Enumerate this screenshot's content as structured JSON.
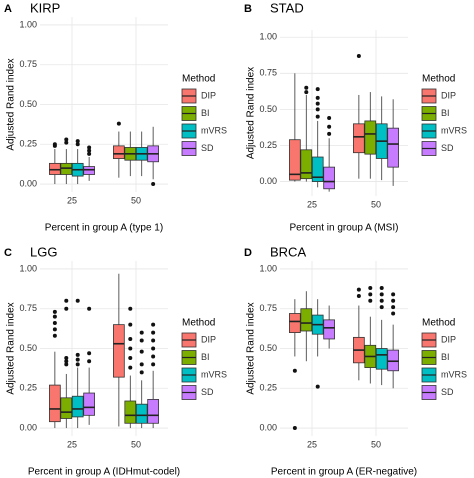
{
  "chart_data": [
    {
      "type": "box",
      "panel": "A",
      "title": "KIRP",
      "x_label": "Percent in group A (type 1)",
      "y_label": "Adjusted Rand index",
      "legend_title": "Method",
      "categories": [
        "25",
        "50"
      ],
      "ylim": [
        -0.05,
        1.05
      ],
      "yticks": [
        {
          "value": 0,
          "label": "0.00"
        },
        {
          "value": 0.25,
          "label": "0.25"
        },
        {
          "value": 0.5,
          "label": "0.50"
        },
        {
          "value": 0.75,
          "label": "0.75"
        },
        {
          "value": 1,
          "label": "1.00"
        }
      ],
      "series": [
        {
          "name": "DIP",
          "color": "#F8766D",
          "values": [
            {
              "min": 0.0,
              "q1": 0.06,
              "median": 0.09,
              "q3": 0.13,
              "max": 0.22,
              "outliers": [
                0.24,
                0.25
              ]
            },
            {
              "min": 0.04,
              "q1": 0.16,
              "median": 0.19,
              "q3": 0.24,
              "max": 0.33,
              "outliers": [
                0.38
              ]
            }
          ]
        },
        {
          "name": "BI",
          "color": "#7CAE00",
          "values": [
            {
              "min": 0.0,
              "q1": 0.06,
              "median": 0.1,
              "q3": 0.13,
              "max": 0.22,
              "outliers": [
                0.26,
                0.28
              ]
            },
            {
              "min": 0.05,
              "q1": 0.15,
              "median": 0.19,
              "q3": 0.23,
              "max": 0.33,
              "outliers": []
            }
          ]
        },
        {
          "name": "mVRS",
          "color": "#00BFC4",
          "values": [
            {
              "min": 0.0,
              "q1": 0.05,
              "median": 0.09,
              "q3": 0.13,
              "max": 0.22,
              "outliers": [
                0.25,
                0.27
              ]
            },
            {
              "min": 0.05,
              "q1": 0.15,
              "median": 0.19,
              "q3": 0.23,
              "max": 0.33,
              "outliers": []
            }
          ]
        },
        {
          "name": "SD",
          "color": "#C77CFF",
          "values": [
            {
              "min": 0.02,
              "q1": 0.06,
              "median": 0.09,
              "q3": 0.11,
              "max": 0.17,
              "outliers": [
                0.19,
                0.21,
                0.23
              ]
            },
            {
              "min": 0.03,
              "q1": 0.14,
              "median": 0.19,
              "q3": 0.24,
              "max": 0.36,
              "outliers": [
                0.0
              ]
            }
          ]
        }
      ]
    },
    {
      "type": "box",
      "panel": "B",
      "title": "STAD",
      "x_label": "Percent in group A (MSI)",
      "y_label": "Adjusted Rand index",
      "legend_title": "Method",
      "categories": [
        "25",
        "50"
      ],
      "ylim": [
        -0.1,
        1.05
      ],
      "yticks": [
        {
          "value": 0,
          "label": "0.00"
        },
        {
          "value": 0.25,
          "label": "0.25"
        },
        {
          "value": 0.5,
          "label": "0.50"
        },
        {
          "value": 0.75,
          "label": "0.75"
        },
        {
          "value": 1,
          "label": "1.00"
        }
      ],
      "series": [
        {
          "name": "DIP",
          "color": "#F8766D",
          "values": [
            {
              "min": 0.0,
              "q1": 0.01,
              "median": 0.05,
              "q3": 0.29,
              "max": 0.75,
              "outliers": []
            },
            {
              "min": 0.02,
              "q1": 0.2,
              "median": 0.31,
              "q3": 0.4,
              "max": 0.6,
              "outliers": [
                0.87
              ]
            }
          ]
        },
        {
          "name": "BI",
          "color": "#7CAE00",
          "values": [
            {
              "min": 0.0,
              "q1": 0.02,
              "median": 0.06,
              "q3": 0.22,
              "max": 0.6,
              "outliers": [
                0.62,
                0.65
              ]
            },
            {
              "min": 0.02,
              "q1": 0.19,
              "median": 0.33,
              "q3": 0.42,
              "max": 0.62,
              "outliers": []
            }
          ]
        },
        {
          "name": "mVRS",
          "color": "#00BFC4",
          "values": [
            {
              "min": -0.04,
              "q1": 0.0,
              "median": 0.03,
              "q3": 0.17,
              "max": 0.42,
              "outliers": [
                0.45,
                0.5,
                0.54,
                0.58,
                0.64
              ]
            },
            {
              "min": 0.01,
              "q1": 0.16,
              "median": 0.28,
              "q3": 0.4,
              "max": 0.59,
              "outliers": []
            }
          ]
        },
        {
          "name": "SD",
          "color": "#C77CFF",
          "values": [
            {
              "min": -0.07,
              "q1": -0.05,
              "median": 0.0,
              "q3": 0.1,
              "max": 0.3,
              "outliers": [
                0.33,
                0.38,
                0.44
              ]
            },
            {
              "min": -0.03,
              "q1": 0.1,
              "median": 0.26,
              "q3": 0.37,
              "max": 0.57,
              "outliers": []
            }
          ]
        }
      ]
    },
    {
      "type": "box",
      "panel": "C",
      "title": "LGG",
      "x_label": "Percent in group A (IDHmut-codel)",
      "y_label": "Adjusted Rand index",
      "legend_title": "Method",
      "categories": [
        "25",
        "50"
      ],
      "ylim": [
        -0.05,
        1.05
      ],
      "yticks": [
        {
          "value": 0,
          "label": "0.00"
        },
        {
          "value": 0.25,
          "label": "0.25"
        },
        {
          "value": 0.5,
          "label": "0.50"
        },
        {
          "value": 0.75,
          "label": "0.75"
        },
        {
          "value": 1,
          "label": "1.00"
        }
      ],
      "series": [
        {
          "name": "DIP",
          "color": "#F8766D",
          "values": [
            {
              "min": 0.0,
              "q1": 0.04,
              "median": 0.12,
              "q3": 0.27,
              "max": 0.48,
              "outliers": [
                0.58,
                0.62,
                0.66,
                0.7,
                0.73
              ]
            },
            {
              "min": 0.01,
              "q1": 0.32,
              "median": 0.53,
              "q3": 0.65,
              "max": 0.97,
              "outliers": []
            }
          ]
        },
        {
          "name": "BI",
          "color": "#7CAE00",
          "values": [
            {
              "min": 0.0,
              "q1": 0.06,
              "median": 0.1,
              "q3": 0.19,
              "max": 0.34,
              "outliers": [
                0.4,
                0.42,
                0.44,
                0.75,
                0.8
              ]
            },
            {
              "min": 0.0,
              "q1": 0.03,
              "median": 0.08,
              "q3": 0.17,
              "max": 0.33,
              "outliers": [
                0.38,
                0.44,
                0.5,
                0.56,
                0.65,
                0.75
              ]
            }
          ]
        },
        {
          "name": "mVRS",
          "color": "#00BFC4",
          "values": [
            {
              "min": 0.0,
              "q1": 0.07,
              "median": 0.12,
              "q3": 0.2,
              "max": 0.38,
              "outliers": [
                0.4,
                0.43,
                0.46,
                0.8
              ]
            },
            {
              "min": 0.0,
              "q1": 0.03,
              "median": 0.08,
              "q3": 0.15,
              "max": 0.3,
              "outliers": [
                0.35,
                0.4,
                0.48,
                0.55,
                0.6
              ]
            }
          ]
        },
        {
          "name": "SD",
          "color": "#C77CFF",
          "values": [
            {
              "min": 0.02,
              "q1": 0.08,
              "median": 0.13,
              "q3": 0.22,
              "max": 0.38,
              "outliers": [
                0.42,
                0.47,
                0.75
              ]
            },
            {
              "min": 0.0,
              "q1": 0.03,
              "median": 0.08,
              "q3": 0.18,
              "max": 0.36,
              "outliers": [
                0.4,
                0.45,
                0.5,
                0.55,
                0.6,
                0.65
              ]
            }
          ]
        }
      ]
    },
    {
      "type": "box",
      "panel": "D",
      "title": "BRCA",
      "x_label": "Percent in group A (ER-negative)",
      "y_label": "Adjusted Rand index",
      "legend_title": "Method",
      "categories": [
        "25",
        "50"
      ],
      "ylim": [
        -0.05,
        1.05
      ],
      "yticks": [
        {
          "value": 0,
          "label": "0.00"
        },
        {
          "value": 0.25,
          "label": "0.25"
        },
        {
          "value": 0.5,
          "label": "0.50"
        },
        {
          "value": 0.75,
          "label": "0.75"
        },
        {
          "value": 1,
          "label": "1.00"
        }
      ],
      "series": [
        {
          "name": "DIP",
          "color": "#F8766D",
          "values": [
            {
              "min": 0.45,
              "q1": 0.6,
              "median": 0.67,
              "q3": 0.72,
              "max": 0.81,
              "outliers": [
                0.36,
                0.0
              ]
            },
            {
              "min": 0.3,
              "q1": 0.41,
              "median": 0.49,
              "q3": 0.57,
              "max": 0.77,
              "outliers": [
                0.83,
                0.87
              ]
            }
          ]
        },
        {
          "name": "BI",
          "color": "#7CAE00",
          "values": [
            {
              "min": 0.42,
              "q1": 0.61,
              "median": 0.66,
              "q3": 0.75,
              "max": 0.86,
              "outliers": []
            },
            {
              "min": 0.28,
              "q1": 0.38,
              "median": 0.45,
              "q3": 0.52,
              "max": 0.7,
              "outliers": [
                0.8,
                0.84,
                0.88
              ]
            }
          ]
        },
        {
          "name": "mVRS",
          "color": "#00BFC4",
          "values": [
            {
              "min": 0.45,
              "q1": 0.59,
              "median": 0.65,
              "q3": 0.71,
              "max": 0.81,
              "outliers": [
                0.26
              ]
            },
            {
              "min": 0.27,
              "q1": 0.37,
              "median": 0.46,
              "q3": 0.5,
              "max": 0.68,
              "outliers": [
                0.76,
                0.8,
                0.84,
                0.88
              ]
            }
          ]
        },
        {
          "name": "SD",
          "color": "#C77CFF",
          "values": [
            {
              "min": 0.5,
              "q1": 0.56,
              "median": 0.63,
              "q3": 0.68,
              "max": 0.77,
              "outliers": []
            },
            {
              "min": 0.25,
              "q1": 0.36,
              "median": 0.42,
              "q3": 0.49,
              "max": 0.65,
              "outliers": [
                0.72,
                0.76,
                0.8,
                0.84
              ]
            }
          ]
        }
      ]
    }
  ]
}
